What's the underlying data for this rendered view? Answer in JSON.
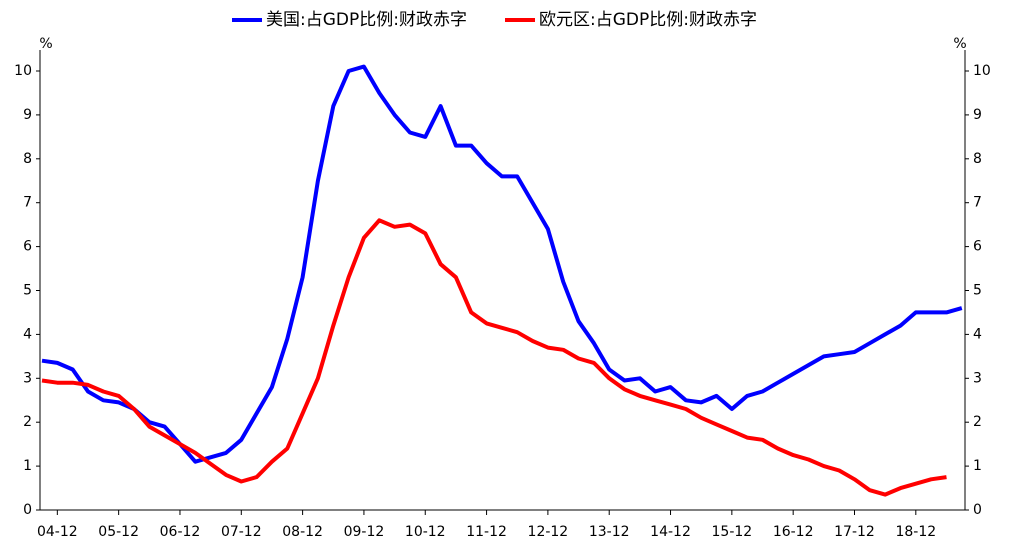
{
  "chart_data": {
    "type": "line",
    "categories": [
      null,
      "04-12",
      null,
      null,
      null,
      "05-12",
      null,
      null,
      null,
      "06-12",
      null,
      null,
      null,
      "07-12",
      null,
      null,
      null,
      "08-12",
      null,
      null,
      null,
      "09-12",
      null,
      null,
      null,
      "10-12",
      null,
      null,
      null,
      "11-12",
      null,
      null,
      null,
      "12-12",
      null,
      null,
      null,
      "13-12",
      null,
      null,
      null,
      "14-12",
      null,
      null,
      null,
      "15-12",
      null,
      null,
      null,
      "16-12",
      null,
      null,
      null,
      "17-12",
      null,
      null,
      null,
      "18-12",
      null,
      null,
      null
    ],
    "series": [
      {
        "name": "美国:占GDP比例:财政赤字",
        "color": "#0000ff",
        "values": [
          3.4,
          3.35,
          3.2,
          2.7,
          2.5,
          2.45,
          2.3,
          2.0,
          1.9,
          1.5,
          1.1,
          1.2,
          1.3,
          1.6,
          2.2,
          2.8,
          3.9,
          5.3,
          7.5,
          9.2,
          10.0,
          10.1,
          9.5,
          9.0,
          8.6,
          8.5,
          9.2,
          8.3,
          8.3,
          7.9,
          7.6,
          7.6,
          7.0,
          6.4,
          5.2,
          4.3,
          3.8,
          3.2,
          2.95,
          3.0,
          2.7,
          2.8,
          2.5,
          2.45,
          2.6,
          2.3,
          2.6,
          2.7,
          2.9,
          3.1,
          3.3,
          3.5,
          3.55,
          3.6,
          3.8,
          4.0,
          4.2,
          4.5,
          4.5,
          4.5,
          4.6
        ]
      },
      {
        "name": "欧元区:占GDP比例:财政赤字",
        "color": "#ff0000",
        "axis": "y2",
        "values": [
          2.95,
          2.9,
          2.9,
          2.85,
          2.7,
          2.6,
          2.3,
          1.9,
          1.7,
          1.5,
          1.3,
          1.05,
          0.8,
          0.65,
          0.75,
          1.1,
          1.4,
          2.2,
          3.0,
          4.2,
          5.3,
          6.2,
          6.6,
          6.45,
          6.5,
          6.3,
          5.6,
          5.3,
          4.5,
          4.25,
          4.15,
          4.05,
          3.85,
          3.7,
          3.65,
          3.45,
          3.35,
          3.0,
          2.75,
          2.6,
          2.5,
          2.4,
          2.3,
          2.1,
          1.95,
          1.8,
          1.65,
          1.6,
          1.4,
          1.25,
          1.15,
          1.0,
          0.9,
          0.7,
          0.45,
          0.35,
          0.5,
          0.6,
          0.7,
          0.75,
          null
        ]
      }
    ],
    "ylabel": "%",
    "y2label": "%",
    "ylim": [
      0,
      10
    ],
    "yticks": [
      0,
      1,
      2,
      3,
      4,
      5,
      6,
      7,
      8,
      9,
      10
    ],
    "y2lim": [
      0,
      10
    ],
    "y2ticks": [
      0,
      1,
      2,
      3,
      4,
      5,
      6,
      7,
      8,
      9,
      10
    ],
    "legend": "top",
    "grid": false
  }
}
